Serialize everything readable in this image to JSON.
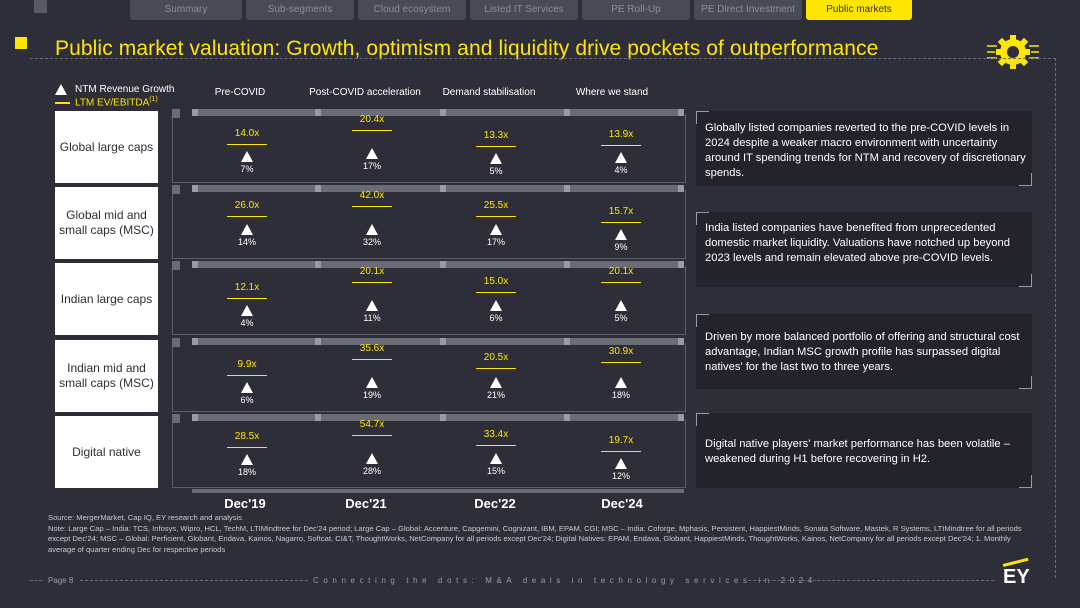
{
  "nav": {
    "tabs": [
      {
        "label": "Summary",
        "active": false
      },
      {
        "label": "Sub-segments",
        "active": false
      },
      {
        "label": "Cloud ecosystem",
        "active": false
      },
      {
        "label": "Listed IT Services",
        "active": false
      },
      {
        "label": "PE Roll-Up",
        "active": false
      },
      {
        "label": "PE Direct Investment",
        "active": false
      },
      {
        "label": "Public markets",
        "active": true
      }
    ]
  },
  "title": "Public market valuation: Growth, optimism and liquidity drive pockets of outperformance",
  "legend": {
    "triangle_label": "NTM Revenue Growth",
    "line_label": "LTM EV/EBITDA",
    "line_sup": "(1)"
  },
  "columns": [
    "Pre-COVID",
    "Post-COVID acceleration",
    "Demand stabilisation",
    "Where we stand"
  ],
  "dates": [
    "Dec'19",
    "Dec'21",
    "Dec'22",
    "Dec'24"
  ],
  "chart_data": {
    "type": "table",
    "columns": [
      "Pre-COVID",
      "Post-COVID acceleration",
      "Demand stabilisation",
      "Where we stand"
    ],
    "x": [
      "Dec'19",
      "Dec'21",
      "Dec'22",
      "Dec'24"
    ],
    "rows": [
      {
        "name": "Global large caps",
        "ev_ebitda": [
          "14.0x",
          "20.4x",
          "13.3x",
          "13.9x"
        ],
        "growth": [
          "7%",
          "17%",
          "5%",
          "4%"
        ]
      },
      {
        "name": "Global mid and small caps (MSC)",
        "ev_ebitda": [
          "26.0x",
          "42.0x",
          "25.5x",
          "15.7x"
        ],
        "growth": [
          "14%",
          "32%",
          "17%",
          "9%"
        ]
      },
      {
        "name": "Indian large caps",
        "ev_ebitda": [
          "12.1x",
          "20.1x",
          "15.0x",
          "20.1x"
        ],
        "growth": [
          "4%",
          "11%",
          "6%",
          "5%"
        ]
      },
      {
        "name": "Indian mid and small caps (MSC)",
        "ev_ebitda": [
          "9.9x",
          "35.6x",
          "20.5x",
          "30.9x"
        ],
        "growth": [
          "6%",
          "19%",
          "21%",
          "18%"
        ]
      },
      {
        "name": "Digital native",
        "ev_ebitda": [
          "28.5x",
          "54.7x",
          "33.4x",
          "19.7x"
        ],
        "growth": [
          "18%",
          "28%",
          "15%",
          "12%"
        ]
      }
    ]
  },
  "row_labels": [
    "Global large caps",
    "Global mid and small caps (MSC)",
    "Indian large caps",
    "Indian mid and small caps (MSC)",
    "Digital native"
  ],
  "commentary": [
    "Globally listed companies reverted to the pre-COVID levels in 2024 despite a weaker macro environment with uncertainty around IT spending trends for NTM and recovery of discretionary spends.",
    "India listed companies have benefited from unprecedented domestic market liquidity. Valuations have notched up beyond 2023 levels and remain elevated above pre-COVID levels.",
    "Driven by more balanced portfolio of offering and structural cost advantage, Indian MSC growth profile has surpassed digital natives' for the last two to three years.",
    "Digital native players' market performance has been volatile – weakened during H1 before recovering in H2."
  ],
  "source": "Source: MergerMarket, Cap IQ, EY research and analysis",
  "note": "Note: Large Cap – India: TCS, Infosys, Wipro, HCL, TechM, LTIMindtree for Dec'24 period; Large Cap – Global: Accenture, Capgemini, Cognizant, IBM, EPAM, CGI; MSC – India: Coforge, Mphasis, Persistent, HappiestMinds, Sonata Software, Mastek, R Systems, LTIMindtree for all periods except Dec'24; MSC – Global: Perficient, Globant, Endava, Kainos, Nagarro, Softcat, CI&T, ThoughtWorks, NetCompany for all periods except Dec'24; Digital Natives: EPAM, Endava, Globant, HappiestMinds, ThoughtWorks, Kainos, NetCompany for all periods except Dec'24; 1. Monthly average of quarter ending Dec for respective periods",
  "footer": {
    "page": "Page 8",
    "tagline": "Connecting the dots: M&A deals in technology services in 2024",
    "logo": "EY"
  },
  "colors": {
    "accent": "#ffe600",
    "background": "#2e2e38",
    "panel": "#23232b"
  }
}
